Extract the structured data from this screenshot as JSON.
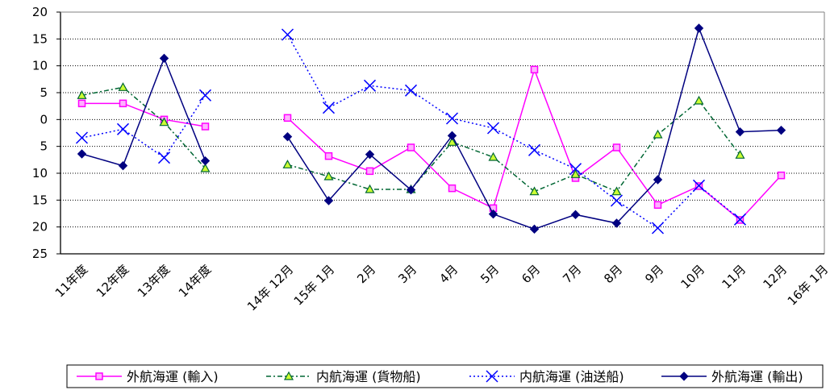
{
  "chart_data": {
    "type": "line",
    "title": "",
    "xlabel": "",
    "ylabel": "",
    "ylim": [
      -25,
      20
    ],
    "y_ticks": [
      {
        "value": 20,
        "label": "20"
      },
      {
        "value": 15,
        "label": "15"
      },
      {
        "value": 10,
        "label": "10"
      },
      {
        "value": 5,
        "label": "5"
      },
      {
        "value": 0,
        "label": "0"
      },
      {
        "value": -5,
        "label": "5"
      },
      {
        "value": -10,
        "label": "10"
      },
      {
        "value": -15,
        "label": "15"
      },
      {
        "value": -20,
        "label": "20"
      },
      {
        "value": -25,
        "label": "25"
      }
    ],
    "grid": "horizontal dotted",
    "legend_position": "bottom",
    "categories": [
      "11年度",
      "12年度",
      "13年度",
      "14年度",
      "",
      "14年 12月",
      "15年 1月",
      "2月",
      "3月",
      "4月",
      "5月",
      "6月",
      "7月",
      "8月",
      "9月",
      "10月",
      "11月",
      "12月",
      "16年 1月"
    ],
    "series": [
      {
        "name": "外航海運 (輸入)",
        "color": "#ff00ff",
        "line": "solid",
        "marker": "square",
        "values": [
          3.0,
          3.0,
          0.0,
          -1.3,
          null,
          0.3,
          -6.8,
          -9.6,
          -5.2,
          -12.8,
          -16.5,
          9.3,
          -10.9,
          -5.2,
          -15.9,
          -12.4,
          -18.7,
          -10.4,
          null
        ]
      },
      {
        "name": "内航海運 (貨物船)",
        "color": "#006633",
        "line": "dashdot",
        "marker": "triangle",
        "values": [
          4.5,
          6.0,
          -0.5,
          -9.1,
          null,
          -8.4,
          -10.6,
          -13.0,
          -13.0,
          -4.2,
          -7.0,
          -13.4,
          -10.2,
          -13.4,
          -2.8,
          3.5,
          -6.6,
          null,
          null
        ]
      },
      {
        "name": "内航海運 (油送船)",
        "color": "#0000ff",
        "line": "dotted",
        "marker": "x",
        "values": [
          -3.4,
          -1.8,
          -7.1,
          4.5,
          null,
          15.8,
          2.2,
          6.3,
          5.4,
          0.2,
          -1.6,
          -5.7,
          -9.2,
          -15.1,
          -20.2,
          -12.3,
          -18.6,
          null,
          null
        ]
      },
      {
        "name": "外航海運 (輸出)",
        "color": "#000080",
        "line": "solid",
        "marker": "diamond",
        "values": [
          -6.4,
          -8.6,
          11.4,
          -7.7,
          null,
          -3.2,
          -15.1,
          -6.5,
          -13.1,
          -3.0,
          -17.6,
          -20.4,
          -17.7,
          -19.3,
          -11.2,
          17.0,
          -2.3,
          -2.0,
          null
        ]
      }
    ]
  }
}
